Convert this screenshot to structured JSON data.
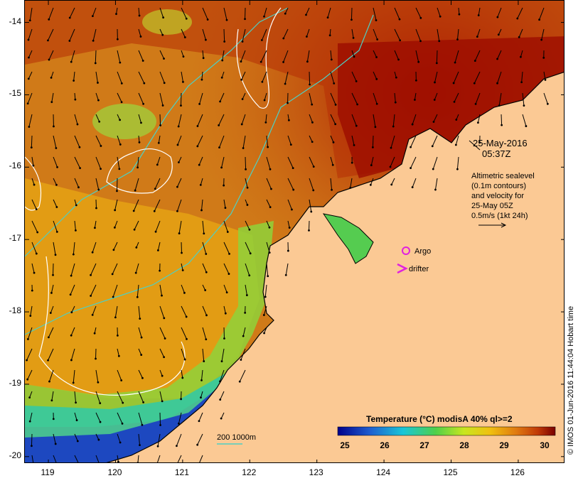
{
  "map": {
    "timestamp_date": "25-May-2016",
    "timestamp_time": "05:37Z",
    "sealevel_note": [
      "Altimetric sealevel",
      "(0.1m contours)",
      "and velocity for",
      "25-May 05Z",
      "0.5m/s (1kt 24h)"
    ],
    "legend_argo": "Argo",
    "legend_drifter": "drifter",
    "bathy_label": "200  1000m",
    "colorbar_title": "Temperature (°C) modisA 40% ql>=2",
    "colorbar_ticks": [
      "25",
      "26",
      "27",
      "28",
      "29",
      "30"
    ],
    "credit": "© IMOS 01-Jun-2016 11:44:04 Hobart time",
    "lat_ticks": [
      "-14",
      "-15",
      "-16",
      "-17",
      "-18",
      "-19",
      "-20"
    ],
    "lon_ticks": [
      "119",
      "120",
      "121",
      "122",
      "123",
      "124",
      "125",
      "126"
    ],
    "lat_range": [
      -20.1,
      -13.7
    ],
    "lon_range": [
      118.65,
      126.7
    ]
  },
  "colors": {
    "land": "#fbc994",
    "coast": "#000000",
    "bathy_contour": "#4dd0c4",
    "sealevel_contour": "#ffffff",
    "argo_marker": "#e020e0",
    "drifter_marker": "#e020e0"
  }
}
